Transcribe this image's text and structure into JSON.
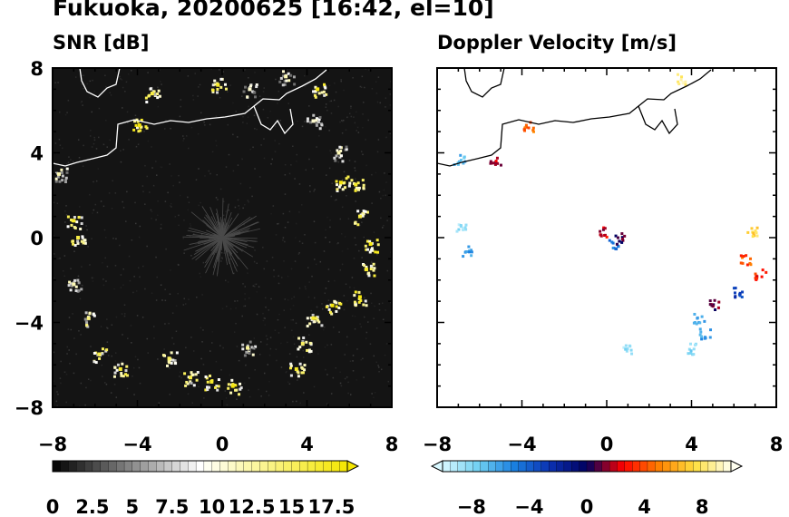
{
  "title": "Fukuoka, 20200625 [16:42, el=10]",
  "colors": {
    "snr_background": "#141414",
    "echo_bright": "#ffffff",
    "echo_peak": "#f5e600",
    "coastline": "#000000",
    "coastline_on_dark": "#ffffff"
  },
  "chart_data": [
    {
      "type": "heatmap",
      "title": "SNR [dB]",
      "x_ticks": [
        "−8",
        "−4",
        "0",
        "4",
        "8"
      ],
      "y_ticks": [
        "8",
        "4",
        "0",
        "−4",
        "−8"
      ],
      "x_tick_values": [
        -8,
        -4,
        0,
        4,
        8
      ],
      "y_tick_values": [
        8,
        4,
        0,
        -4,
        -8
      ],
      "xlim": [
        -8,
        8
      ],
      "ylim": [
        -8,
        8
      ],
      "colorbar": {
        "labels": [
          "0",
          "2.5",
          "5",
          "7.5",
          "10",
          "12.5",
          "15",
          "17.5"
        ],
        "label_values": [
          0,
          2.5,
          5,
          7.5,
          10,
          12.5,
          15,
          17.5
        ],
        "range": [
          0,
          18.5
        ],
        "levels": 37,
        "extend": "max",
        "colors": [
          "#000000",
          "#ffffff",
          "#f5e600"
        ]
      },
      "echoes": [
        {
          "x": -7.0,
          "y": -2.2,
          "snr": 12
        },
        {
          "x": -6.3,
          "y": -3.8,
          "snr": 14
        },
        {
          "x": -5.8,
          "y": -5.5,
          "snr": 16
        },
        {
          "x": -4.8,
          "y": -6.2,
          "snr": 17
        },
        {
          "x": -2.5,
          "y": -5.7,
          "snr": 15
        },
        {
          "x": -1.5,
          "y": -6.6,
          "snr": 16
        },
        {
          "x": -0.5,
          "y": -6.8,
          "snr": 17
        },
        {
          "x": 0.5,
          "y": -7.0,
          "snr": 18
        },
        {
          "x": 1.2,
          "y": -5.2,
          "snr": 13
        },
        {
          "x": 3.5,
          "y": -6.2,
          "snr": 17
        },
        {
          "x": 3.8,
          "y": -5.0,
          "snr": 15
        },
        {
          "x": 4.3,
          "y": -3.8,
          "snr": 17
        },
        {
          "x": 5.2,
          "y": -3.2,
          "snr": 18
        },
        {
          "x": 6.5,
          "y": -2.8,
          "snr": 18
        },
        {
          "x": 6.8,
          "y": -1.5,
          "snr": 17
        },
        {
          "x": 7.0,
          "y": -0.3,
          "snr": 18
        },
        {
          "x": 6.5,
          "y": 1.0,
          "snr": 16
        },
        {
          "x": 6.3,
          "y": 2.5,
          "snr": 17
        },
        {
          "x": 5.6,
          "y": 2.6,
          "snr": 18
        },
        {
          "x": 5.5,
          "y": 4.0,
          "snr": 12
        },
        {
          "x": 4.3,
          "y": 5.5,
          "snr": 11
        },
        {
          "x": 1.3,
          "y": 7.0,
          "snr": 11
        },
        {
          "x": 3.0,
          "y": 7.6,
          "snr": 12
        },
        {
          "x": 4.5,
          "y": 7.0,
          "snr": 18
        },
        {
          "x": -0.2,
          "y": 7.2,
          "snr": 17
        },
        {
          "x": -3.3,
          "y": 6.8,
          "snr": 16
        },
        {
          "x": -3.9,
          "y": 5.3,
          "snr": 18
        },
        {
          "x": -7.0,
          "y": 0.8,
          "snr": 17
        },
        {
          "x": -6.8,
          "y": 0.0,
          "snr": 16
        },
        {
          "x": -7.7,
          "y": 3.0,
          "snr": 12
        }
      ]
    },
    {
      "type": "heatmap",
      "title": "Doppler Velocity [m/s]",
      "x_ticks": [
        "−8",
        "−4",
        "0",
        "4",
        "8"
      ],
      "y_ticks": [
        "8",
        "4",
        "0",
        "−4",
        "−8"
      ],
      "x_tick_values": [
        -8,
        -4,
        0,
        4,
        8
      ],
      "y_tick_values": [
        8,
        4,
        0,
        -4,
        -8
      ],
      "xlim": [
        -8,
        8
      ],
      "ylim": [
        -8,
        8
      ],
      "colorbar": {
        "labels": [
          "−8",
          "−4",
          "0",
          "4",
          "8"
        ],
        "label_values": [
          -8,
          -4,
          0,
          4,
          8
        ],
        "range": [
          -10,
          10
        ],
        "levels": 38,
        "extend": "both",
        "colors": [
          "#d8f8ff",
          "#6fd0f2",
          "#1a7fe0",
          "#0b2fb0",
          "#000060",
          "#ff0000",
          "#ff8000",
          "#ffe040",
          "#fffff0"
        ]
      },
      "echoes": [
        {
          "x": -3.7,
          "y": 5.3,
          "v": 4.5
        },
        {
          "x": -7.0,
          "y": 3.7,
          "v": -7.0
        },
        {
          "x": -5.3,
          "y": 3.6,
          "v": 1.5
        },
        {
          "x": -6.9,
          "y": 0.5,
          "v": -8.5
        },
        {
          "x": -6.6,
          "y": -0.6,
          "v": -6.0
        },
        {
          "x": -0.2,
          "y": 0.3,
          "v": 2.0
        },
        {
          "x": 0.3,
          "y": -0.3,
          "v": -5.0
        },
        {
          "x": 0.6,
          "y": 0.0,
          "v": 0.5
        },
        {
          "x": 6.5,
          "y": -1.0,
          "v": 4.0
        },
        {
          "x": 7.2,
          "y": -1.7,
          "v": 3.0
        },
        {
          "x": 6.1,
          "y": -2.5,
          "v": -3.0
        },
        {
          "x": 5.0,
          "y": -3.1,
          "v": 1.0
        },
        {
          "x": 4.3,
          "y": -3.8,
          "v": -6.5
        },
        {
          "x": 4.6,
          "y": -4.5,
          "v": -6.0
        },
        {
          "x": 4.0,
          "y": -5.2,
          "v": -8.0
        },
        {
          "x": 1.0,
          "y": -5.2,
          "v": -8.5
        },
        {
          "x": 6.8,
          "y": 0.3,
          "v": 7.5
        },
        {
          "x": 3.5,
          "y": 7.5,
          "v": 8.5
        }
      ]
    }
  ]
}
